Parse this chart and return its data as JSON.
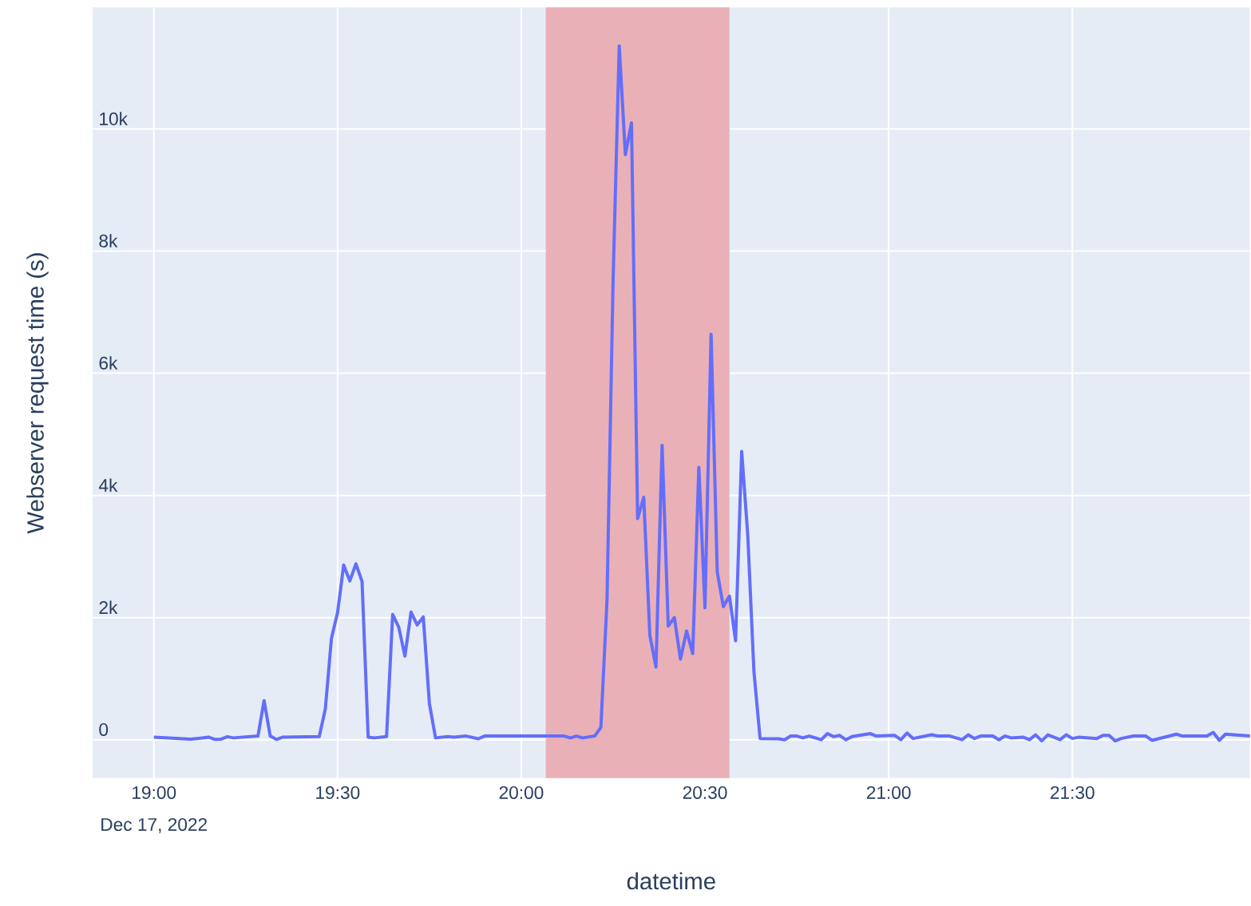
{
  "chart_data": {
    "type": "line",
    "xlabel": "datetime",
    "ylabel": "Webserver request time (s)",
    "annotations": [
      "Dec 17, 2022"
    ],
    "color": "#636efa",
    "grid": true,
    "xlim": [
      "2022-12-17T18:50",
      "2022-12-17T21:59"
    ],
    "ylim": [
      -630,
      11990
    ],
    "xticks": [
      {
        "value": "2022-12-17T19:00",
        "label": "19:00"
      },
      {
        "value": "2022-12-17T19:30",
        "label": "19:30"
      },
      {
        "value": "2022-12-17T20:00",
        "label": "20:00"
      },
      {
        "value": "2022-12-17T20:30",
        "label": "20:30"
      },
      {
        "value": "2022-12-17T21:00",
        "label": "21:00"
      },
      {
        "value": "2022-12-17T21:30",
        "label": "21:30"
      }
    ],
    "yticks": [
      0,
      {
        "value": 2000,
        "label": "2k"
      },
      {
        "value": 4000,
        "label": "4k"
      },
      {
        "value": 6000,
        "label": "6k"
      },
      {
        "value": 8000,
        "label": "8k"
      },
      {
        "value": 10000,
        "label": "10k"
      }
    ],
    "bands": [
      {
        "axis": "x",
        "from": "2022-12-17T20:04",
        "to": "2022-12-17T20:34",
        "color": "#eab0b7"
      }
    ],
    "x": [
      "2022-12-17T19:00",
      "2022-12-17T19:06",
      "2022-12-17T19:09",
      "2022-12-17T19:10",
      "2022-12-17T19:11",
      "2022-12-17T19:12",
      "2022-12-17T19:13",
      "2022-12-17T19:17",
      "2022-12-17T19:18",
      "2022-12-17T19:19",
      "2022-12-17T19:20",
      "2022-12-17T19:21",
      "2022-12-17T19:27",
      "2022-12-17T19:28",
      "2022-12-17T19:29",
      "2022-12-17T19:30",
      "2022-12-17T19:31",
      "2022-12-17T19:32",
      "2022-12-17T19:33",
      "2022-12-17T19:34",
      "2022-12-17T19:35",
      "2022-12-17T19:36",
      "2022-12-17T19:38",
      "2022-12-17T19:39",
      "2022-12-17T19:40",
      "2022-12-17T19:41",
      "2022-12-17T19:42",
      "2022-12-17T19:43",
      "2022-12-17T19:44",
      "2022-12-17T19:45",
      "2022-12-17T19:46",
      "2022-12-17T19:48",
      "2022-12-17T19:49",
      "2022-12-17T19:51",
      "2022-12-17T19:53",
      "2022-12-17T19:54",
      "2022-12-17T20:07",
      "2022-12-17T20:08",
      "2022-12-17T20:09",
      "2022-12-17T20:10",
      "2022-12-17T20:12",
      "2022-12-17T20:13",
      "2022-12-17T20:14",
      "2022-12-17T20:15",
      "2022-12-17T20:16",
      "2022-12-17T20:17",
      "2022-12-17T20:18",
      "2022-12-17T20:19",
      "2022-12-17T20:20",
      "2022-12-17T20:21",
      "2022-12-17T20:22",
      "2022-12-17T20:23",
      "2022-12-17T20:24",
      "2022-12-17T20:25",
      "2022-12-17T20:26",
      "2022-12-17T20:27",
      "2022-12-17T20:28",
      "2022-12-17T20:29",
      "2022-12-17T20:30",
      "2022-12-17T20:31",
      "2022-12-17T20:32",
      "2022-12-17T20:33",
      "2022-12-17T20:34",
      "2022-12-17T20:35",
      "2022-12-17T20:36",
      "2022-12-17T20:37",
      "2022-12-17T20:38",
      "2022-12-17T20:39",
      "2022-12-17T20:42",
      "2022-12-17T20:43",
      "2022-12-17T20:44",
      "2022-12-17T20:45",
      "2022-12-17T20:46",
      "2022-12-17T20:47",
      "2022-12-17T20:49",
      "2022-12-17T20:50",
      "2022-12-17T20:51",
      "2022-12-17T20:52",
      "2022-12-17T20:53",
      "2022-12-17T20:54",
      "2022-12-17T20:57",
      "2022-12-17T20:58",
      "2022-12-17T21:01",
      "2022-12-17T21:02",
      "2022-12-17T21:03",
      "2022-12-17T21:04",
      "2022-12-17T21:07",
      "2022-12-17T21:08",
      "2022-12-17T21:10",
      "2022-12-17T21:12",
      "2022-12-17T21:13",
      "2022-12-17T21:14",
      "2022-12-17T21:15",
      "2022-12-17T21:17",
      "2022-12-17T21:18",
      "2022-12-17T21:19",
      "2022-12-17T21:20",
      "2022-12-17T21:22",
      "2022-12-17T21:23",
      "2022-12-17T21:24",
      "2022-12-17T21:25",
      "2022-12-17T21:26",
      "2022-12-17T21:28",
      "2022-12-17T21:29",
      "2022-12-17T21:30",
      "2022-12-17T21:31",
      "2022-12-17T21:34",
      "2022-12-17T21:35",
      "2022-12-17T21:36",
      "2022-12-17T21:37",
      "2022-12-17T21:38",
      "2022-12-17T21:40",
      "2022-12-17T21:42",
      "2022-12-17T21:43",
      "2022-12-17T21:47",
      "2022-12-17T21:48",
      "2022-12-17T21:52",
      "2022-12-17T21:53",
      "2022-12-17T21:54",
      "2022-12-17T21:55",
      "2022-12-17T21:59"
    ],
    "values": [
      40,
      10,
      40,
      5,
      10,
      50,
      30,
      60,
      640,
      60,
      5,
      40,
      50,
      500,
      1660,
      2080,
      2860,
      2600,
      2880,
      2590,
      40,
      30,
      50,
      2050,
      1840,
      1370,
      2090,
      1880,
      2010,
      590,
      30,
      50,
      40,
      60,
      15,
      60,
      60,
      30,
      60,
      30,
      60,
      200,
      2280,
      7540,
      11360,
      9580,
      10100,
      3620,
      3970,
      1710,
      1190,
      4820,
      1860,
      2000,
      1320,
      1780,
      1410,
      4460,
      2160,
      6640,
      2750,
      2180,
      2350,
      1620,
      4720,
      3330,
      1110,
      20,
      15,
      0,
      60,
      60,
      30,
      60,
      0,
      100,
      50,
      70,
      0,
      50,
      100,
      60,
      70,
      0,
      110,
      20,
      80,
      60,
      60,
      0,
      80,
      20,
      60,
      60,
      0,
      60,
      30,
      40,
      0,
      80,
      -20,
      80,
      0,
      80,
      20,
      40,
      20,
      70,
      70,
      -20,
      20,
      60,
      60,
      -10,
      90,
      60,
      60,
      120,
      -10,
      90,
      60
    ]
  }
}
